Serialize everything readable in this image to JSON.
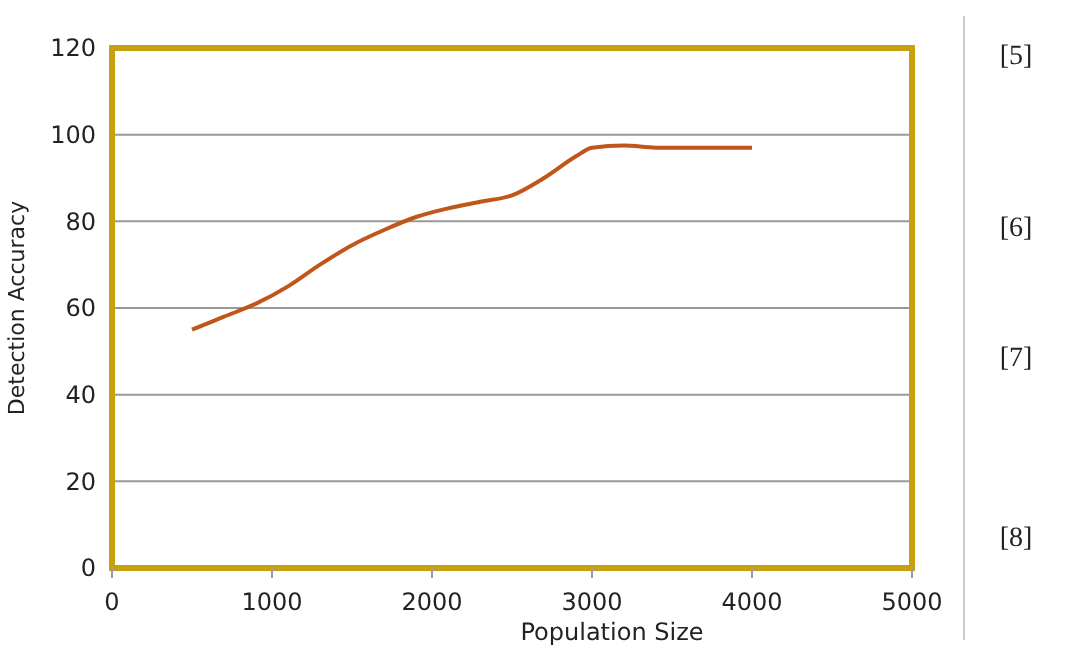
{
  "chart_data": {
    "type": "line",
    "xlabel": "Population Size",
    "ylabel": "Detection Accuracy",
    "x": [
      500,
      700,
      900,
      1100,
      1300,
      1500,
      1700,
      1900,
      2100,
      2300,
      2500,
      2700,
      2900,
      3000,
      3200,
      3400,
      3600,
      4000
    ],
    "series": [
      {
        "color": "#c0561a",
        "values": [
          55,
          58,
          61,
          65,
          70,
          74.5,
          78,
          81,
          83,
          84.5,
          86,
          90,
          95,
          97,
          97.5,
          97,
          97,
          97
        ]
      }
    ],
    "xlim": [
      0,
      5000
    ],
    "xticks": [
      0,
      1000,
      2000,
      3000,
      4000,
      5000
    ],
    "ylim": [
      0,
      120
    ],
    "yticks": [
      0,
      20,
      40,
      60,
      80,
      100,
      120
    ],
    "grid": "y",
    "marker": "none",
    "line_style": "solid",
    "annotations": [
      "[5]",
      "[6]",
      "[7]",
      "[8]"
    ]
  }
}
